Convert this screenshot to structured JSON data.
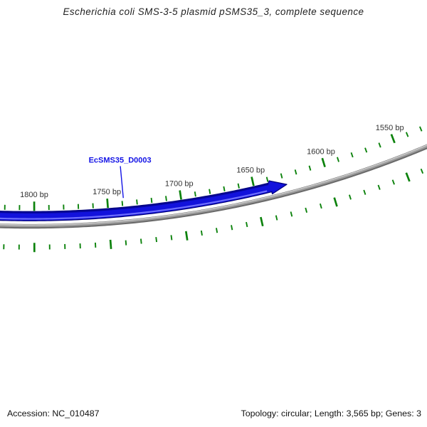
{
  "title": "Escherichia coli SMS-3-5 plasmid pSMS35_3, complete sequence",
  "status_bar": {
    "accession_label": "Accession: NC_010487",
    "summary_label": "Topology: circular; Length: 3,565 bp; Genes: 3"
  },
  "chart_data": {
    "type": "plasmid_map_arc_view",
    "sequence": {
      "accession": "NC_010487",
      "name": "pSMS35_3",
      "organism": "Escherichia coli SMS-3-5",
      "length_bp": 3565,
      "topology": "circular",
      "genes_total": 3
    },
    "ruler": {
      "unit": "bp",
      "major_tick_interval_bp": 50,
      "minor_tick_interval_bp": 10,
      "visible_bp_range": [
        1520,
        1830
      ],
      "major_tick_labels": [
        {
          "bp": 1550,
          "label": "1550 bp"
        },
        {
          "bp": 1600,
          "label": "1600 bp"
        },
        {
          "bp": 1650,
          "label": "1650 bp"
        },
        {
          "bp": 1700,
          "label": "1700 bp"
        },
        {
          "bp": 1750,
          "label": "1750 bp"
        },
        {
          "bp": 1800,
          "label": "1800 bp"
        }
      ]
    },
    "features": [
      {
        "name": "EcSMS35_D0003",
        "label": "EcSMS35_D0003",
        "shape": "arrow",
        "arrow_tip_bp": 1628,
        "arrow_shoulder_bp": 1639,
        "visible_from_bp": 1880,
        "label_anchor_bp": 1739,
        "color": "#1212dc"
      }
    ],
    "colors": {
      "backbone_gray_dark": "#6b6b6b",
      "backbone_gray_mid": "#9d9d9d",
      "backbone_gray_light": "#c9c9c9",
      "tick_green": "#0c820c",
      "feature_blue": "#1212dc",
      "feature_blue_outline": "#000078",
      "feature_blue_highlight": "#7878ff",
      "feature_label_blue": "#1414e6",
      "tick_label": "#333333",
      "background": "#ffffff"
    }
  }
}
